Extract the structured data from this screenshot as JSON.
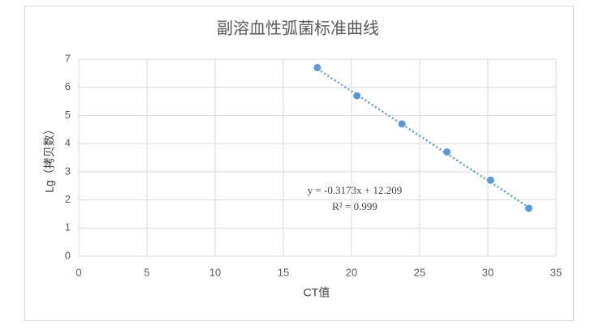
{
  "chart_data": {
    "type": "scatter",
    "title": "副溶血性弧菌标准曲线",
    "x_label": "CT值",
    "y_label": "Lg（拷贝数）",
    "x": [
      17.5,
      20.4,
      23.7,
      27.0,
      30.2,
      33.0
    ],
    "values": [
      6.7,
      5.7,
      4.7,
      3.7,
      2.7,
      1.7
    ],
    "color": "#5b9bd5",
    "xlim": [
      0,
      35
    ],
    "xticks": [
      0,
      5,
      10,
      15,
      20,
      25,
      30,
      35
    ],
    "ylim": [
      0,
      7
    ],
    "yticks": [
      0,
      1,
      2,
      3,
      4,
      5,
      6,
      7
    ],
    "grid": true,
    "trendline": {
      "slope": -0.3173,
      "intercept": 12.209,
      "label": "y = -0.3173x + 12.209",
      "r2_label": "R² = 0.999"
    }
  }
}
